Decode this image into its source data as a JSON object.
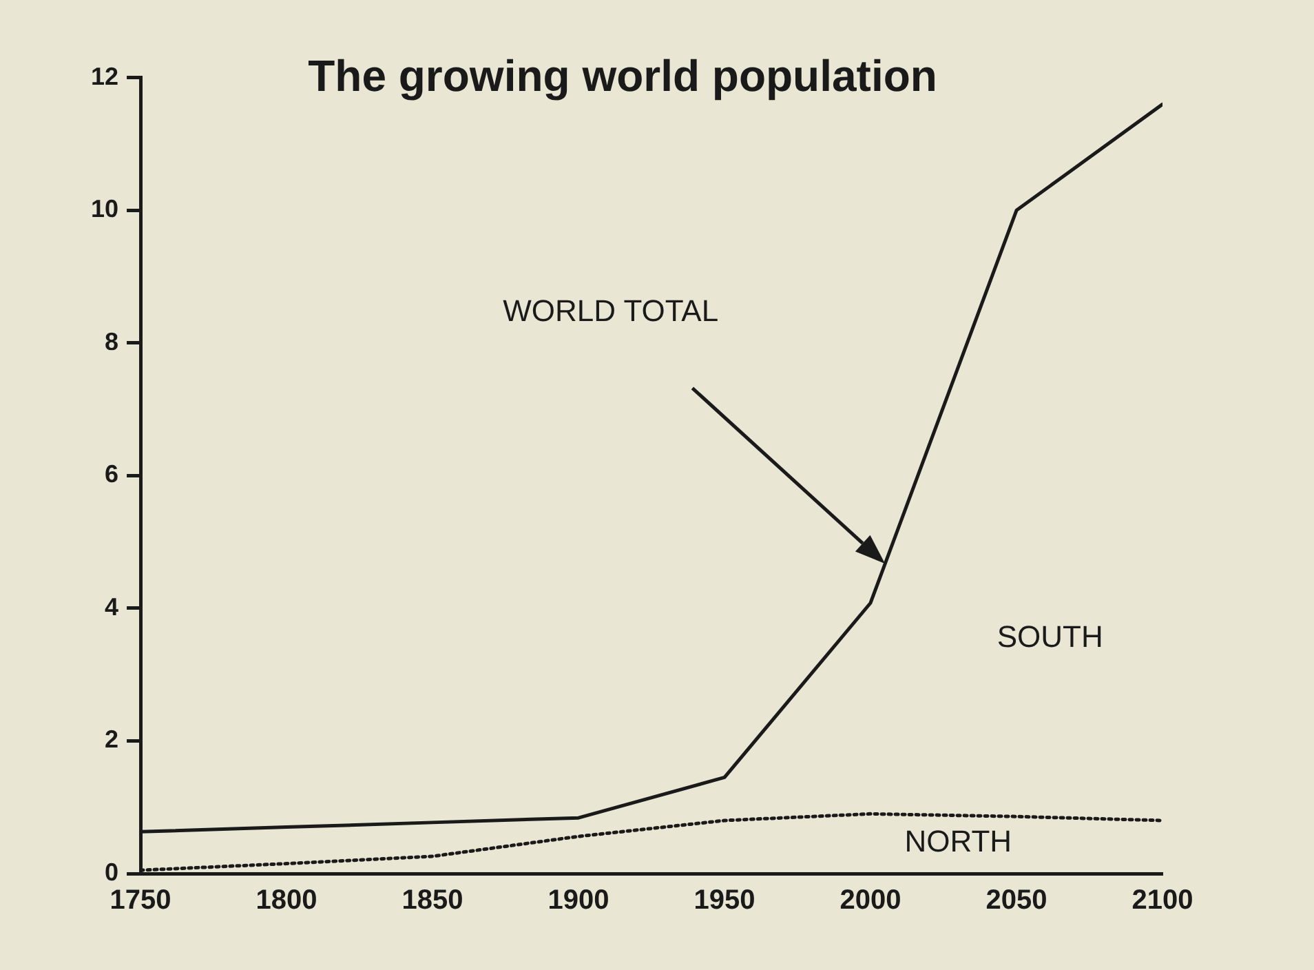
{
  "chart_data": {
    "type": "line",
    "title": "The growing world population",
    "x": [
      1750,
      1800,
      1850,
      1900,
      1950,
      2000,
      2050,
      2100
    ],
    "series": [
      {
        "color": "#1a1a1a",
        "line_style": "solid",
        "values": [
          0.63,
          0.7,
          0.77,
          0.84,
          1.45,
          4.08,
          10.0,
          11.6
        ]
      },
      {
        "color": "#1a1a1a",
        "line_style": "dotted",
        "values": [
          0.05,
          0.15,
          0.26,
          0.56,
          0.8,
          0.9,
          0.86,
          0.8
        ]
      }
    ],
    "annotations": [
      "WORLD TOTAL",
      "SOUTH",
      "NORTH"
    ],
    "xlim": [
      1750,
      2100
    ],
    "xticks": [
      1750,
      1800,
      1850,
      1900,
      1950,
      2000,
      2050,
      2100
    ],
    "ylim": [
      0,
      12
    ],
    "yticks": [
      0,
      2,
      4,
      6,
      8,
      10,
      12
    ],
    "grid": false,
    "legend": false,
    "marker": "none"
  }
}
